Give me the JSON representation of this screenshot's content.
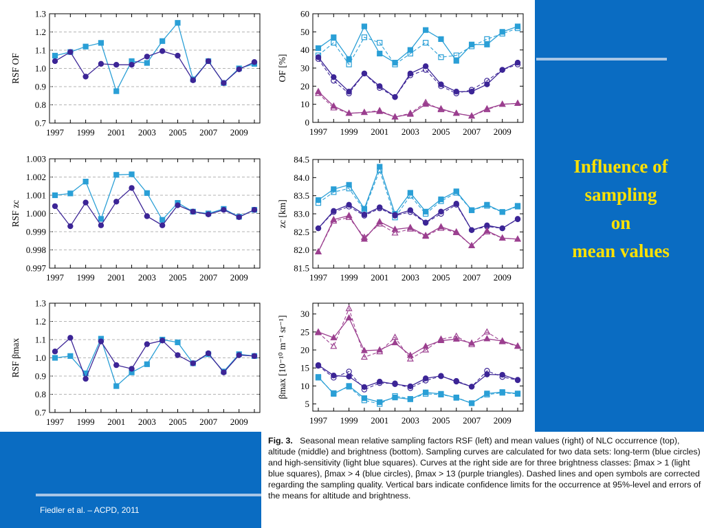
{
  "slide": {
    "title_lines": [
      "Influence of",
      "sampling",
      "on",
      "mean values"
    ],
    "citation": "Fiedler et al. – ACPD, 2011",
    "colors": {
      "background": "#0a6cc2",
      "title": "#ffe100",
      "light_blue": "#2a9fd6",
      "blue": "#3c2596",
      "purple": "#9b3f8f"
    }
  },
  "caption": {
    "label": "Fig. 3.",
    "text": "Seasonal mean relative sampling factors RSF (left) and mean values (right) of NLC occurrence (top), altitude (middle) and brightness (bottom). Sampling curves are calculated for two data sets: long-term (blue circles) and high-sensitivity (light blue squares). Curves at the right side are for three brightness classes: βmax > 1 (light blue squares), βmax > 4 (blue circles), βmax > 13 (purple triangles). Dashed lines and open symbols are corrected regarding the sampling quality. Vertical bars indicate confidence limits for the occurrence at 95%-level and errors of the means for altitude and brightness."
  },
  "chart_data": [
    {
      "id": "rsf_of",
      "type": "line",
      "ylabel": "RSF OF",
      "x": [
        1997,
        1998,
        1999,
        2000,
        2001,
        2002,
        2003,
        2004,
        2005,
        2006,
        2007,
        2008,
        2009,
        2010
      ],
      "xticks": [
        "1997",
        "1999",
        "2001",
        "2003",
        "2005",
        "2007",
        "2009"
      ],
      "ylim": [
        0.7,
        1.3
      ],
      "yticks": [
        "0.7",
        "0.8",
        "0.9",
        "1.0",
        "1.1",
        "1.2",
        "1.3"
      ],
      "grid": true,
      "series": [
        {
          "style": "light_blue_squares",
          "values": [
            1.07,
            1.09,
            1.12,
            1.14,
            0.875,
            1.04,
            1.03,
            1.15,
            1.25,
            0.94,
            1.04,
            0.92,
            1.0,
            1.025
          ]
        },
        {
          "style": "blue_circles",
          "values": [
            1.04,
            1.09,
            0.955,
            1.025,
            1.02,
            1.02,
            1.065,
            1.095,
            1.07,
            0.935,
            1.04,
            0.92,
            0.995,
            1.035
          ]
        }
      ]
    },
    {
      "id": "rsf_zc",
      "type": "line",
      "ylabel": "RSF zc",
      "x": [
        1997,
        1998,
        1999,
        2000,
        2001,
        2002,
        2003,
        2004,
        2005,
        2006,
        2007,
        2008,
        2009,
        2010
      ],
      "xticks": [
        "1997",
        "1999",
        "2001",
        "2003",
        "2005",
        "2007",
        "2009"
      ],
      "ylim": [
        0.997,
        1.003
      ],
      "yticks": [
        "0.997",
        "0.998",
        "0.999",
        "1.000",
        "1.001",
        "1.002",
        "1.003"
      ],
      "grid": true,
      "series": [
        {
          "style": "light_blue_squares",
          "values": [
            1.001,
            1.0011,
            1.00175,
            0.9997,
            1.00212,
            1.00215,
            1.00112,
            0.99965,
            1.00058,
            1.0001,
            1.0,
            1.00025,
            0.99982,
            1.0002
          ]
        },
        {
          "style": "blue_circles",
          "values": [
            1.0004,
            0.9993,
            1.0006,
            0.99935,
            1.00065,
            1.0014,
            0.99985,
            0.99935,
            1.00045,
            1.0001,
            0.99995,
            1.0002,
            0.9998,
            1.0002
          ]
        }
      ]
    },
    {
      "id": "rsf_beta",
      "type": "line",
      "ylabel": "RSF βmax",
      "x": [
        1997,
        1998,
        1999,
        2000,
        2001,
        2002,
        2003,
        2004,
        2005,
        2006,
        2007,
        2008,
        2009,
        2010
      ],
      "xticks": [
        "1997",
        "1999",
        "2001",
        "2003",
        "2005",
        "2007",
        "2009"
      ],
      "ylim": [
        0.7,
        1.3
      ],
      "yticks": [
        "0.7",
        "0.8",
        "0.9",
        "1.0",
        "1.1",
        "1.2",
        "1.3"
      ],
      "grid": true,
      "series": [
        {
          "style": "light_blue_squares",
          "values": [
            1.0,
            1.01,
            0.915,
            1.105,
            0.845,
            0.92,
            0.965,
            1.1,
            1.085,
            0.97,
            1.02,
            0.925,
            1.02,
            1.01
          ]
        },
        {
          "style": "blue_circles",
          "values": [
            1.035,
            1.11,
            0.885,
            1.09,
            0.96,
            0.94,
            1.075,
            1.095,
            1.015,
            0.97,
            1.025,
            0.92,
            1.015,
            1.01
          ]
        }
      ]
    },
    {
      "id": "mean_of",
      "type": "line",
      "ylabel": "OF [%]",
      "x": [
        1997,
        1998,
        1999,
        2000,
        2001,
        2002,
        2003,
        2004,
        2005,
        2006,
        2007,
        2008,
        2009,
        2010
      ],
      "xticks": [
        "1997",
        "1999",
        "2001",
        "2003",
        "2005",
        "2007",
        "2009"
      ],
      "ylim": [
        0,
        60
      ],
      "yticks": [
        "0",
        "10",
        "20",
        "30",
        "40",
        "50",
        "60"
      ],
      "grid": false,
      "series": [
        {
          "style": "light_blue_squares",
          "values": [
            41,
            47,
            35,
            53,
            38,
            33,
            40,
            51,
            46,
            34,
            43,
            43,
            50,
            53
          ],
          "corrected": [
            37,
            44,
            32,
            47,
            44,
            32,
            38,
            44,
            36,
            37,
            42,
            46,
            49,
            52
          ]
        },
        {
          "style": "blue_circles",
          "values": [
            36,
            25,
            17,
            27,
            20,
            14,
            27,
            31,
            21,
            17,
            17,
            21,
            29,
            33
          ],
          "corrected": [
            35,
            23,
            16,
            27,
            19,
            14,
            26,
            29,
            20,
            16,
            18,
            23,
            29,
            32
          ]
        },
        {
          "style": "purple_triangles",
          "values": [
            17,
            9,
            5,
            5.5,
            6,
            3,
            4.5,
            10,
            7.5,
            5,
            3.5,
            7.5,
            10,
            10.5
          ],
          "corrected": [
            16,
            8,
            5,
            5.5,
            6.5,
            3,
            5,
            11,
            7,
            5,
            3.5,
            7,
            10,
            10.5
          ]
        }
      ]
    },
    {
      "id": "mean_zc",
      "type": "line",
      "ylabel": "zc [km]",
      "x": [
        1997,
        1998,
        1999,
        2000,
        2001,
        2002,
        2003,
        2004,
        2005,
        2006,
        2007,
        2008,
        2009,
        2010
      ],
      "xticks": [
        "1997",
        "1999",
        "2001",
        "2003",
        "2005",
        "2007",
        "2009"
      ],
      "ylim": [
        81.5,
        84.5
      ],
      "yticks": [
        "81.5",
        "82.0",
        "82.5",
        "83.0",
        "83.5",
        "84.0",
        "84.5"
      ],
      "grid": false,
      "series": [
        {
          "style": "light_blue_squares",
          "values": [
            83.38,
            83.68,
            83.8,
            83.14,
            84.3,
            83.0,
            83.58,
            83.06,
            83.4,
            83.62,
            83.1,
            83.25,
            83.05,
            83.22
          ],
          "corrected": [
            83.3,
            83.6,
            83.7,
            83.1,
            84.2,
            82.9,
            83.5,
            83.0,
            83.35,
            83.58,
            83.1,
            83.22,
            83.05,
            83.2
          ]
        },
        {
          "style": "blue_circles",
          "values": [
            82.6,
            83.08,
            83.25,
            82.98,
            83.18,
            82.97,
            83.1,
            82.76,
            83.06,
            83.28,
            82.55,
            82.68,
            82.6,
            82.86
          ],
          "corrected": [
            82.6,
            83.05,
            83.2,
            82.95,
            83.15,
            82.95,
            83.05,
            82.75,
            83.0,
            83.25,
            82.55,
            82.65,
            82.6,
            82.85
          ]
        },
        {
          "style": "purple_triangles",
          "values": [
            81.95,
            82.84,
            82.95,
            82.3,
            82.78,
            82.57,
            82.62,
            82.4,
            82.64,
            82.5,
            82.12,
            82.53,
            82.33,
            82.3
          ],
          "corrected": [
            81.95,
            82.8,
            82.9,
            82.35,
            82.72,
            82.47,
            82.58,
            82.38,
            82.6,
            82.48,
            82.12,
            82.5,
            82.33,
            82.3
          ]
        }
      ]
    },
    {
      "id": "mean_beta",
      "type": "line",
      "ylabel": "βmax [10⁻¹⁰ m⁻¹ sr⁻¹]",
      "x": [
        1997,
        1998,
        1999,
        2000,
        2001,
        2002,
        2003,
        2004,
        2005,
        2006,
        2007,
        2008,
        2009,
        2010
      ],
      "xticks": [
        "1997",
        "1999",
        "2001",
        "2003",
        "2005",
        "2007",
        "2009"
      ],
      "ylim": [
        3,
        33
      ],
      "yticks": [
        "5",
        "10",
        "15",
        "20",
        "25",
        "30"
      ],
      "grid": false,
      "series": [
        {
          "style": "light_blue_squares",
          "values": [
            12.5,
            7.8,
            10,
            6.6,
            5.5,
            6.8,
            6.3,
            8.2,
            7.8,
            6.7,
            5.2,
            7.9,
            8.3,
            7.9
          ],
          "corrected": [
            12.3,
            8,
            9.8,
            6,
            5,
            7.2,
            6.4,
            7.8,
            7.6,
            6.8,
            5.2,
            7.6,
            8.1,
            7.8
          ]
        },
        {
          "style": "blue_circles",
          "values": [
            15.8,
            12.9,
            12.6,
            9.7,
            11.2,
            10.5,
            9.9,
            12.1,
            12.8,
            11.2,
            9.8,
            13.2,
            13.1,
            11.7
          ],
          "corrected": [
            15.6,
            12.3,
            14,
            9,
            10.8,
            10.7,
            9.4,
            11.5,
            12.7,
            11.4,
            9.8,
            14.2,
            12.5,
            11.6
          ]
        },
        {
          "style": "purple_triangles",
          "values": [
            25,
            23.4,
            28.9,
            19.8,
            20,
            22,
            18.5,
            21,
            22.6,
            23,
            21.9,
            23.1,
            22.5,
            21.1
          ],
          "corrected": [
            24.8,
            21,
            31.5,
            18,
            19.5,
            23.5,
            17.5,
            20,
            23,
            23.8,
            21.5,
            25,
            22.3,
            21
          ]
        }
      ]
    }
  ]
}
